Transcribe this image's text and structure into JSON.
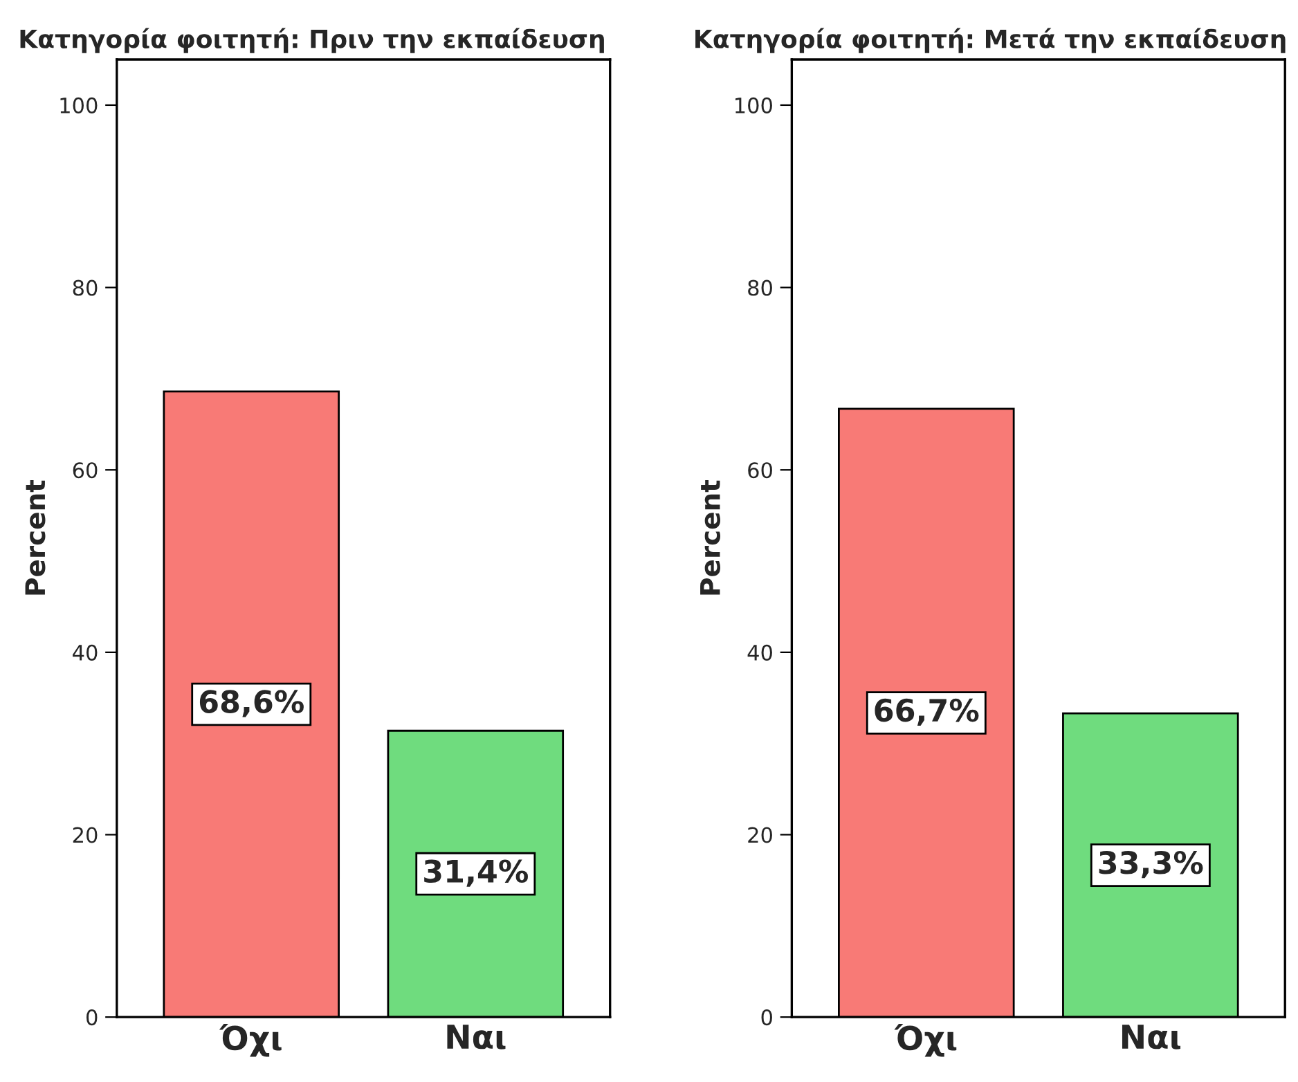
{
  "chart_data": [
    {
      "type": "bar",
      "title": "Κατηγορία φοιτητή: Πριν την εκπαίδευση",
      "ylabel": "Percent",
      "categories": [
        "Όχι",
        "Ναι"
      ],
      "values": [
        68.6,
        31.4
      ],
      "colors": [
        "#f87a76",
        "#6fdc7e"
      ],
      "value_labels": [
        "68,6%",
        "31,4%"
      ],
      "ylim": [
        0,
        105
      ],
      "yticks": [
        0,
        20,
        40,
        60,
        80,
        100
      ],
      "grid": false,
      "legend": false
    },
    {
      "type": "bar",
      "title": "Κατηγορία φοιτητή: Μετά την εκπαίδευση",
      "ylabel": "Percent",
      "categories": [
        "Όχι",
        "Ναι"
      ],
      "values": [
        66.7,
        33.3
      ],
      "colors": [
        "#f87a76",
        "#6fdc7e"
      ],
      "value_labels": [
        "66,7%",
        "33,3%"
      ],
      "ylim": [
        0,
        105
      ],
      "yticks": [
        0,
        20,
        40,
        60,
        80,
        100
      ],
      "grid": false,
      "legend": false
    }
  ]
}
